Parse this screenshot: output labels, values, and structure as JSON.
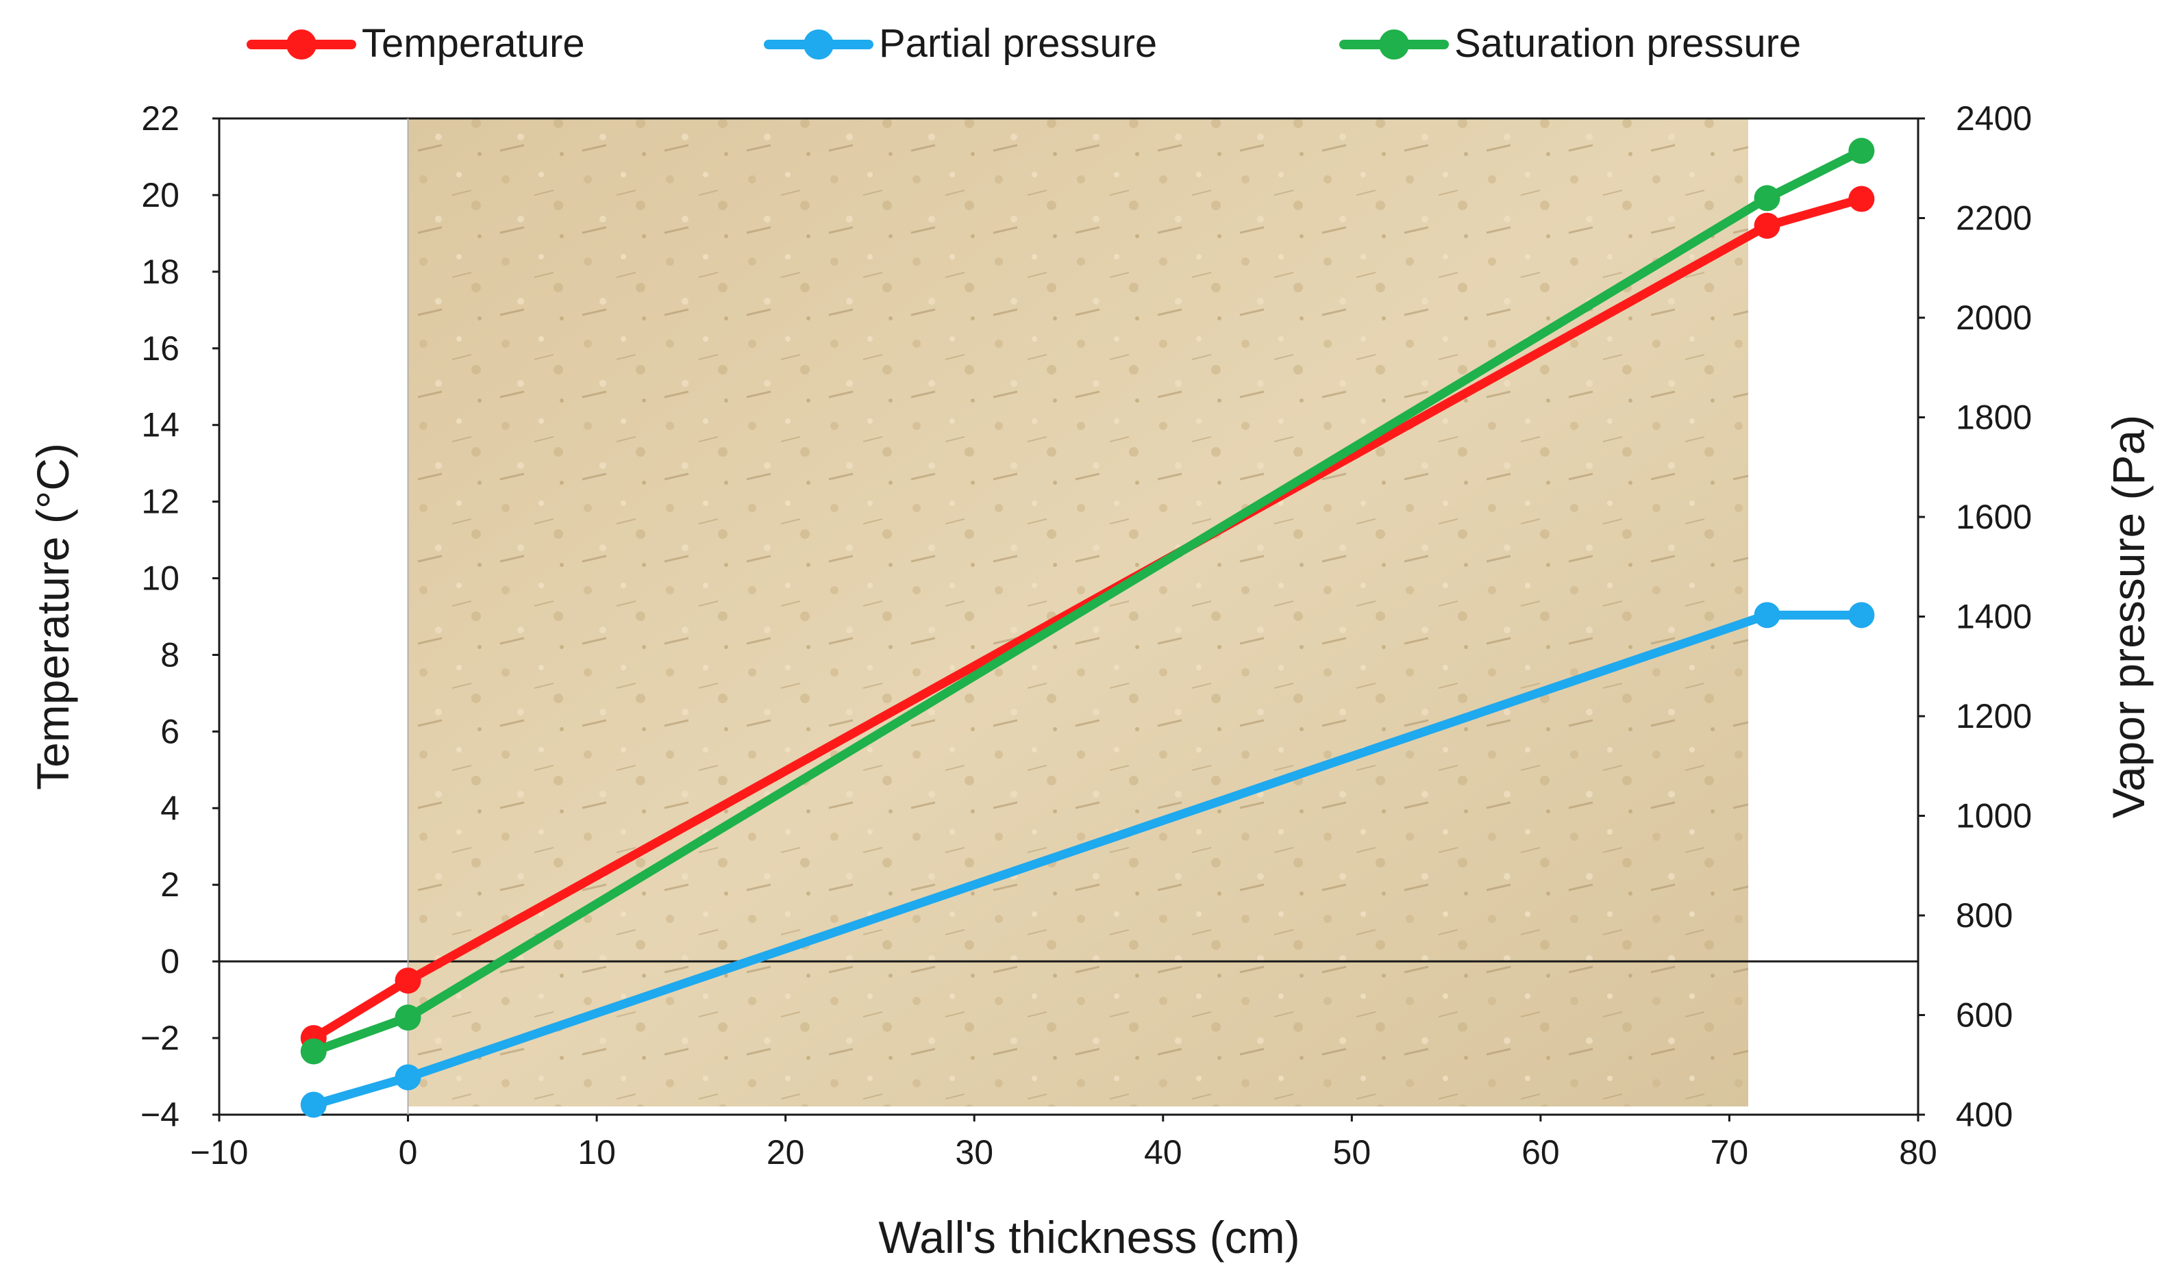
{
  "chart_data": {
    "type": "line",
    "title": "",
    "xlabel": "Wall's thickness (cm)",
    "ylabel_left": "Temperature (°C)",
    "ylabel_right": "Vapor pressure (Pa)",
    "xlim": [
      -10,
      80
    ],
    "ylim_left": [
      -4,
      22
    ],
    "ylim_right": [
      400,
      2400
    ],
    "x_ticks": [
      "−10",
      "0",
      "10",
      "20",
      "30",
      "40",
      "50",
      "60",
      "70",
      "80"
    ],
    "y_left_ticks": [
      "−4",
      "−2",
      "0",
      "2",
      "4",
      "6",
      "8",
      "10",
      "12",
      "14",
      "16",
      "18",
      "20",
      "22"
    ],
    "y_right_ticks": [
      "400",
      "600",
      "800",
      "1000",
      "1200",
      "1400",
      "1600",
      "1800",
      "2000",
      "2200",
      "2400"
    ],
    "x": [
      -5,
      0,
      72,
      77
    ],
    "series": [
      {
        "name": "Temperature",
        "axis": "left",
        "color": "#ff1a1a",
        "values": [
          -2.0,
          -0.5,
          19.2,
          19.9
        ]
      },
      {
        "name": "Partial pressure",
        "axis": "right",
        "color": "#1fa9ee",
        "values": [
          420,
          475,
          1403,
          1403
        ]
      },
      {
        "name": "Saturation pressure",
        "axis": "right",
        "color": "#1fb14b",
        "values": [
          527,
          595,
          2240,
          2335
        ]
      }
    ],
    "background_image": "wall-texture-photo",
    "background_range_x": [
      0,
      71
    ],
    "legend_position": "top",
    "grid": false
  }
}
